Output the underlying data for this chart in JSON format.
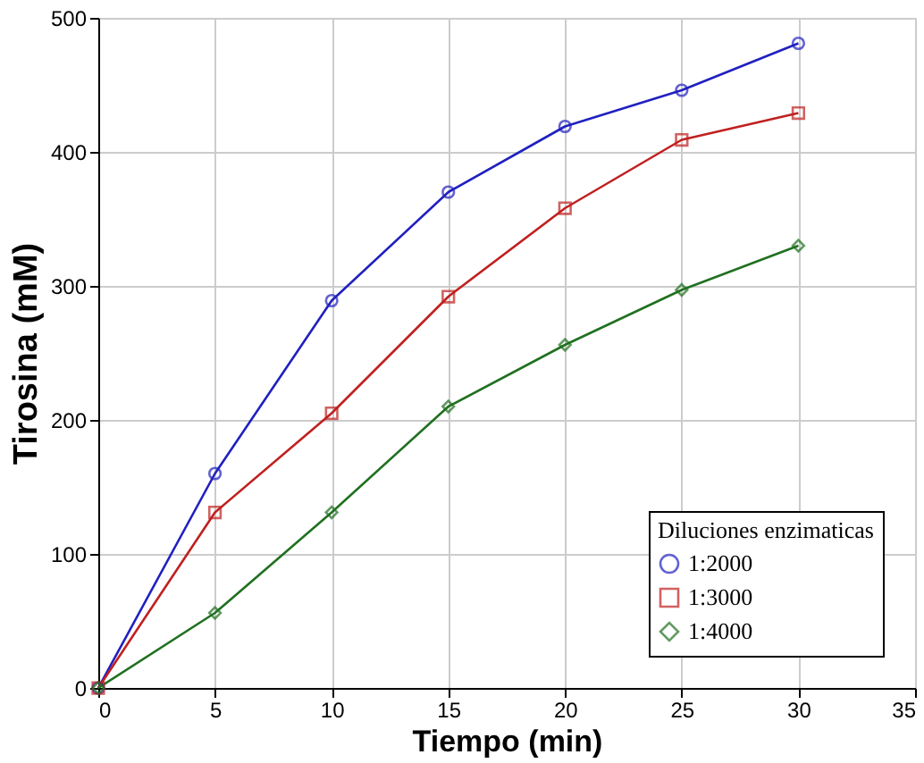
{
  "chart_data": {
    "type": "line",
    "xlabel": "Tiempo (min)",
    "ylabel": "Tirosina (mM)",
    "legend_title": "Diluciones enzimaticas",
    "x": [
      0,
      5,
      10,
      15,
      20,
      25,
      30
    ],
    "series": [
      {
        "name": "1:2000",
        "color": "#2020c0",
        "marker": "circle",
        "values": [
          0,
          160,
          289,
          370,
          419,
          446,
          481
        ]
      },
      {
        "name": "1:3000",
        "color": "#c02020",
        "marker": "square",
        "values": [
          0,
          131,
          205,
          292,
          358,
          409,
          429
        ]
      },
      {
        "name": "1:4000",
        "color": "#207020",
        "marker": "diamond",
        "values": [
          0,
          56,
          131,
          210,
          256,
          297,
          330
        ]
      }
    ],
    "xlim": [
      0,
      35
    ],
    "xticks": [
      0,
      5,
      10,
      15,
      20,
      25,
      30,
      35
    ],
    "ylim": [
      0,
      500
    ],
    "yticks": [
      0,
      100,
      200,
      300,
      400,
      500
    ],
    "grid": true,
    "legend": "bottom right",
    "line_style": "solid"
  }
}
